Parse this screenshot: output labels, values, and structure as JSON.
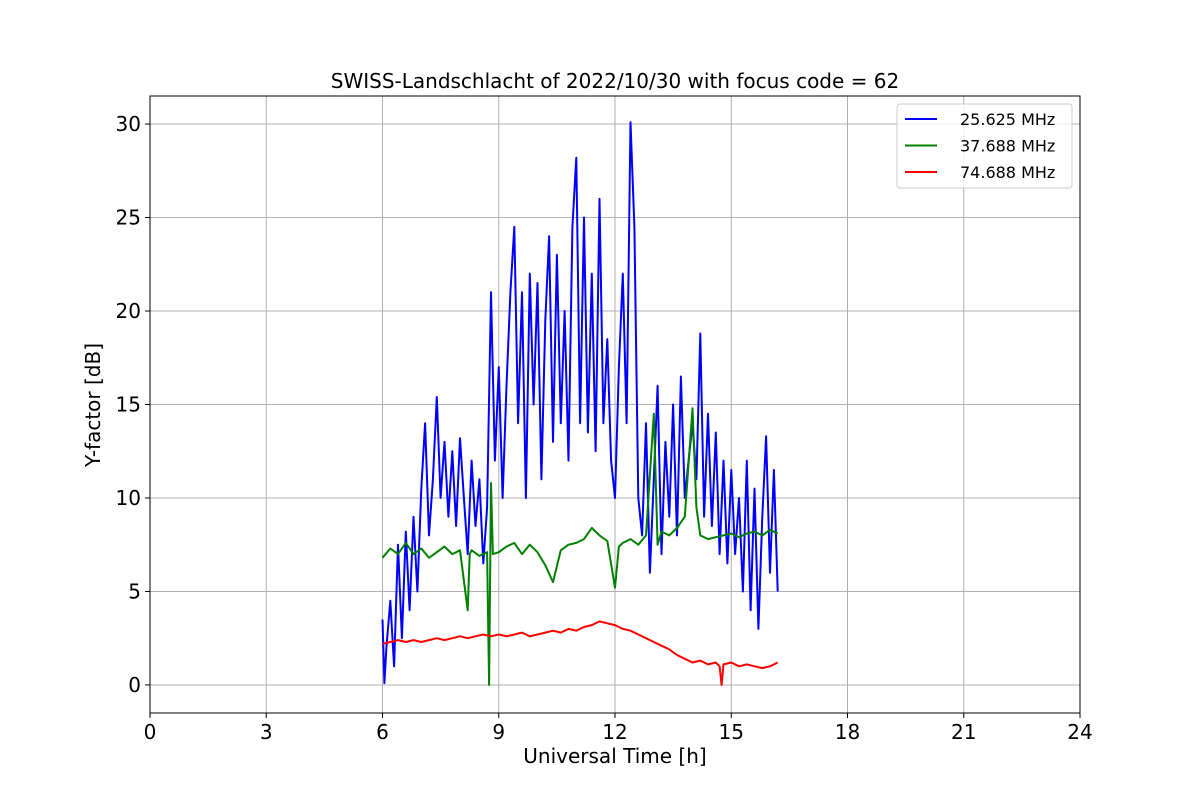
{
  "chart_data": {
    "type": "line",
    "title": "SWISS-Landschlacht of 2022/10/30 with focus code = 62",
    "xlabel": "Universal Time [h]",
    "ylabel": "Y-factor [dB]",
    "xlim": [
      0,
      24
    ],
    "ylim": [
      -1.5,
      31.5
    ],
    "xticks": [
      0,
      3,
      6,
      9,
      12,
      15,
      18,
      21,
      24
    ],
    "yticks": [
      0,
      5,
      10,
      15,
      20,
      25,
      30
    ],
    "grid": true,
    "legend_position": "top-right",
    "series": [
      {
        "name": "25.625 MHz",
        "color": "#0000ff",
        "x": [
          6.0,
          6.05,
          6.1,
          6.2,
          6.3,
          6.4,
          6.5,
          6.6,
          6.7,
          6.8,
          6.9,
          7.0,
          7.1,
          7.2,
          7.3,
          7.4,
          7.5,
          7.6,
          7.7,
          7.8,
          7.9,
          8.0,
          8.1,
          8.2,
          8.3,
          8.4,
          8.5,
          8.6,
          8.7,
          8.8,
          8.9,
          9.0,
          9.1,
          9.2,
          9.3,
          9.4,
          9.5,
          9.6,
          9.7,
          9.8,
          9.9,
          10.0,
          10.1,
          10.2,
          10.3,
          10.4,
          10.5,
          10.6,
          10.7,
          10.8,
          10.9,
          11.0,
          11.1,
          11.2,
          11.3,
          11.4,
          11.5,
          11.6,
          11.7,
          11.8,
          11.9,
          12.0,
          12.1,
          12.2,
          12.3,
          12.4,
          12.5,
          12.6,
          12.7,
          12.8,
          12.9,
          13.0,
          13.1,
          13.2,
          13.3,
          13.4,
          13.5,
          13.6,
          13.7,
          13.8,
          13.9,
          14.0,
          14.1,
          14.2,
          14.3,
          14.4,
          14.5,
          14.6,
          14.7,
          14.8,
          14.9,
          15.0,
          15.1,
          15.2,
          15.3,
          15.4,
          15.5,
          15.6,
          15.7,
          15.8,
          15.9,
          16.0,
          16.1,
          16.2
        ],
        "y": [
          3.5,
          0.1,
          2.0,
          4.5,
          1.0,
          7.5,
          2.5,
          8.2,
          4.0,
          9.0,
          5.0,
          10.5,
          14.0,
          8.0,
          11.0,
          15.4,
          10.0,
          13.0,
          9.0,
          12.5,
          8.5,
          13.2,
          10.0,
          7.0,
          12.0,
          8.5,
          11.0,
          6.5,
          9.5,
          21.0,
          12.0,
          17.0,
          10.0,
          16.0,
          21.0,
          24.5,
          14.0,
          21.0,
          10.0,
          22.0,
          15.0,
          21.5,
          11.0,
          19.5,
          24.0,
          13.0,
          23.0,
          14.0,
          20.0,
          12.0,
          24.5,
          28.2,
          14.0,
          25.0,
          13.5,
          22.0,
          12.5,
          26.0,
          14.0,
          18.5,
          12.0,
          10.0,
          17.0,
          22.0,
          14.0,
          30.1,
          24.5,
          10.0,
          8.0,
          14.0,
          6.0,
          11.0,
          16.0,
          7.0,
          13.0,
          9.0,
          15.0,
          8.0,
          16.5,
          10.0,
          12.0,
          14.0,
          11.0,
          18.8,
          9.0,
          14.5,
          8.5,
          13.5,
          7.0,
          12.0,
          6.5,
          11.5,
          7.0,
          10.0,
          5.0,
          12.0,
          4.0,
          10.5,
          3.0,
          9.0,
          13.3,
          6.0,
          11.5,
          5.0
        ]
      },
      {
        "name": "37.688 MHz",
        "color": "#008000",
        "x": [
          6.0,
          6.2,
          6.4,
          6.6,
          6.8,
          7.0,
          7.2,
          7.4,
          7.6,
          7.8,
          8.0,
          8.2,
          8.25,
          8.3,
          8.5,
          8.7,
          8.75,
          8.8,
          8.85,
          9.0,
          9.2,
          9.4,
          9.6,
          9.8,
          10.0,
          10.2,
          10.4,
          10.6,
          10.8,
          11.0,
          11.2,
          11.4,
          11.6,
          11.8,
          12.0,
          12.1,
          12.2,
          12.4,
          12.6,
          12.8,
          13.0,
          13.1,
          13.2,
          13.4,
          13.6,
          13.8,
          14.0,
          14.1,
          14.2,
          14.4,
          14.6,
          14.8,
          15.0,
          15.2,
          15.4,
          15.6,
          15.8,
          16.0,
          16.2
        ],
        "y": [
          6.8,
          7.3,
          7.0,
          7.6,
          7.0,
          7.3,
          6.8,
          7.1,
          7.4,
          7.0,
          7.2,
          4.0,
          7.0,
          7.2,
          6.9,
          7.1,
          0.0,
          10.8,
          7.0,
          7.1,
          7.4,
          7.6,
          7.0,
          7.5,
          7.1,
          6.4,
          5.5,
          7.2,
          7.5,
          7.6,
          7.8,
          8.4,
          8.0,
          7.7,
          5.2,
          7.4,
          7.6,
          7.8,
          7.5,
          8.0,
          14.5,
          7.5,
          8.2,
          8.0,
          8.4,
          9.0,
          14.8,
          9.5,
          8.0,
          7.8,
          7.9,
          8.0,
          8.1,
          7.9,
          8.1,
          8.2,
          8.0,
          8.3,
          8.1
        ]
      },
      {
        "name": "74.688 MHz",
        "color": "#ff0000",
        "x": [
          6.0,
          6.2,
          6.4,
          6.6,
          6.8,
          7.0,
          7.2,
          7.4,
          7.6,
          7.8,
          8.0,
          8.2,
          8.4,
          8.6,
          8.8,
          9.0,
          9.2,
          9.4,
          9.6,
          9.8,
          10.0,
          10.2,
          10.4,
          10.6,
          10.8,
          11.0,
          11.2,
          11.4,
          11.6,
          11.8,
          12.0,
          12.2,
          12.4,
          12.6,
          12.8,
          13.0,
          13.2,
          13.4,
          13.6,
          13.8,
          14.0,
          14.2,
          14.4,
          14.6,
          14.7,
          14.75,
          14.8,
          15.0,
          15.2,
          15.4,
          15.6,
          15.8,
          16.0,
          16.2
        ],
        "y": [
          2.2,
          2.3,
          2.4,
          2.3,
          2.4,
          2.3,
          2.4,
          2.5,
          2.4,
          2.5,
          2.6,
          2.5,
          2.6,
          2.7,
          2.6,
          2.7,
          2.6,
          2.7,
          2.8,
          2.6,
          2.7,
          2.8,
          2.9,
          2.8,
          3.0,
          2.9,
          3.1,
          3.2,
          3.4,
          3.3,
          3.2,
          3.0,
          2.9,
          2.7,
          2.5,
          2.3,
          2.1,
          1.9,
          1.6,
          1.4,
          1.2,
          1.3,
          1.1,
          1.2,
          1.0,
          0.0,
          1.1,
          1.2,
          1.0,
          1.1,
          1.0,
          0.9,
          1.0,
          1.2
        ]
      }
    ]
  }
}
